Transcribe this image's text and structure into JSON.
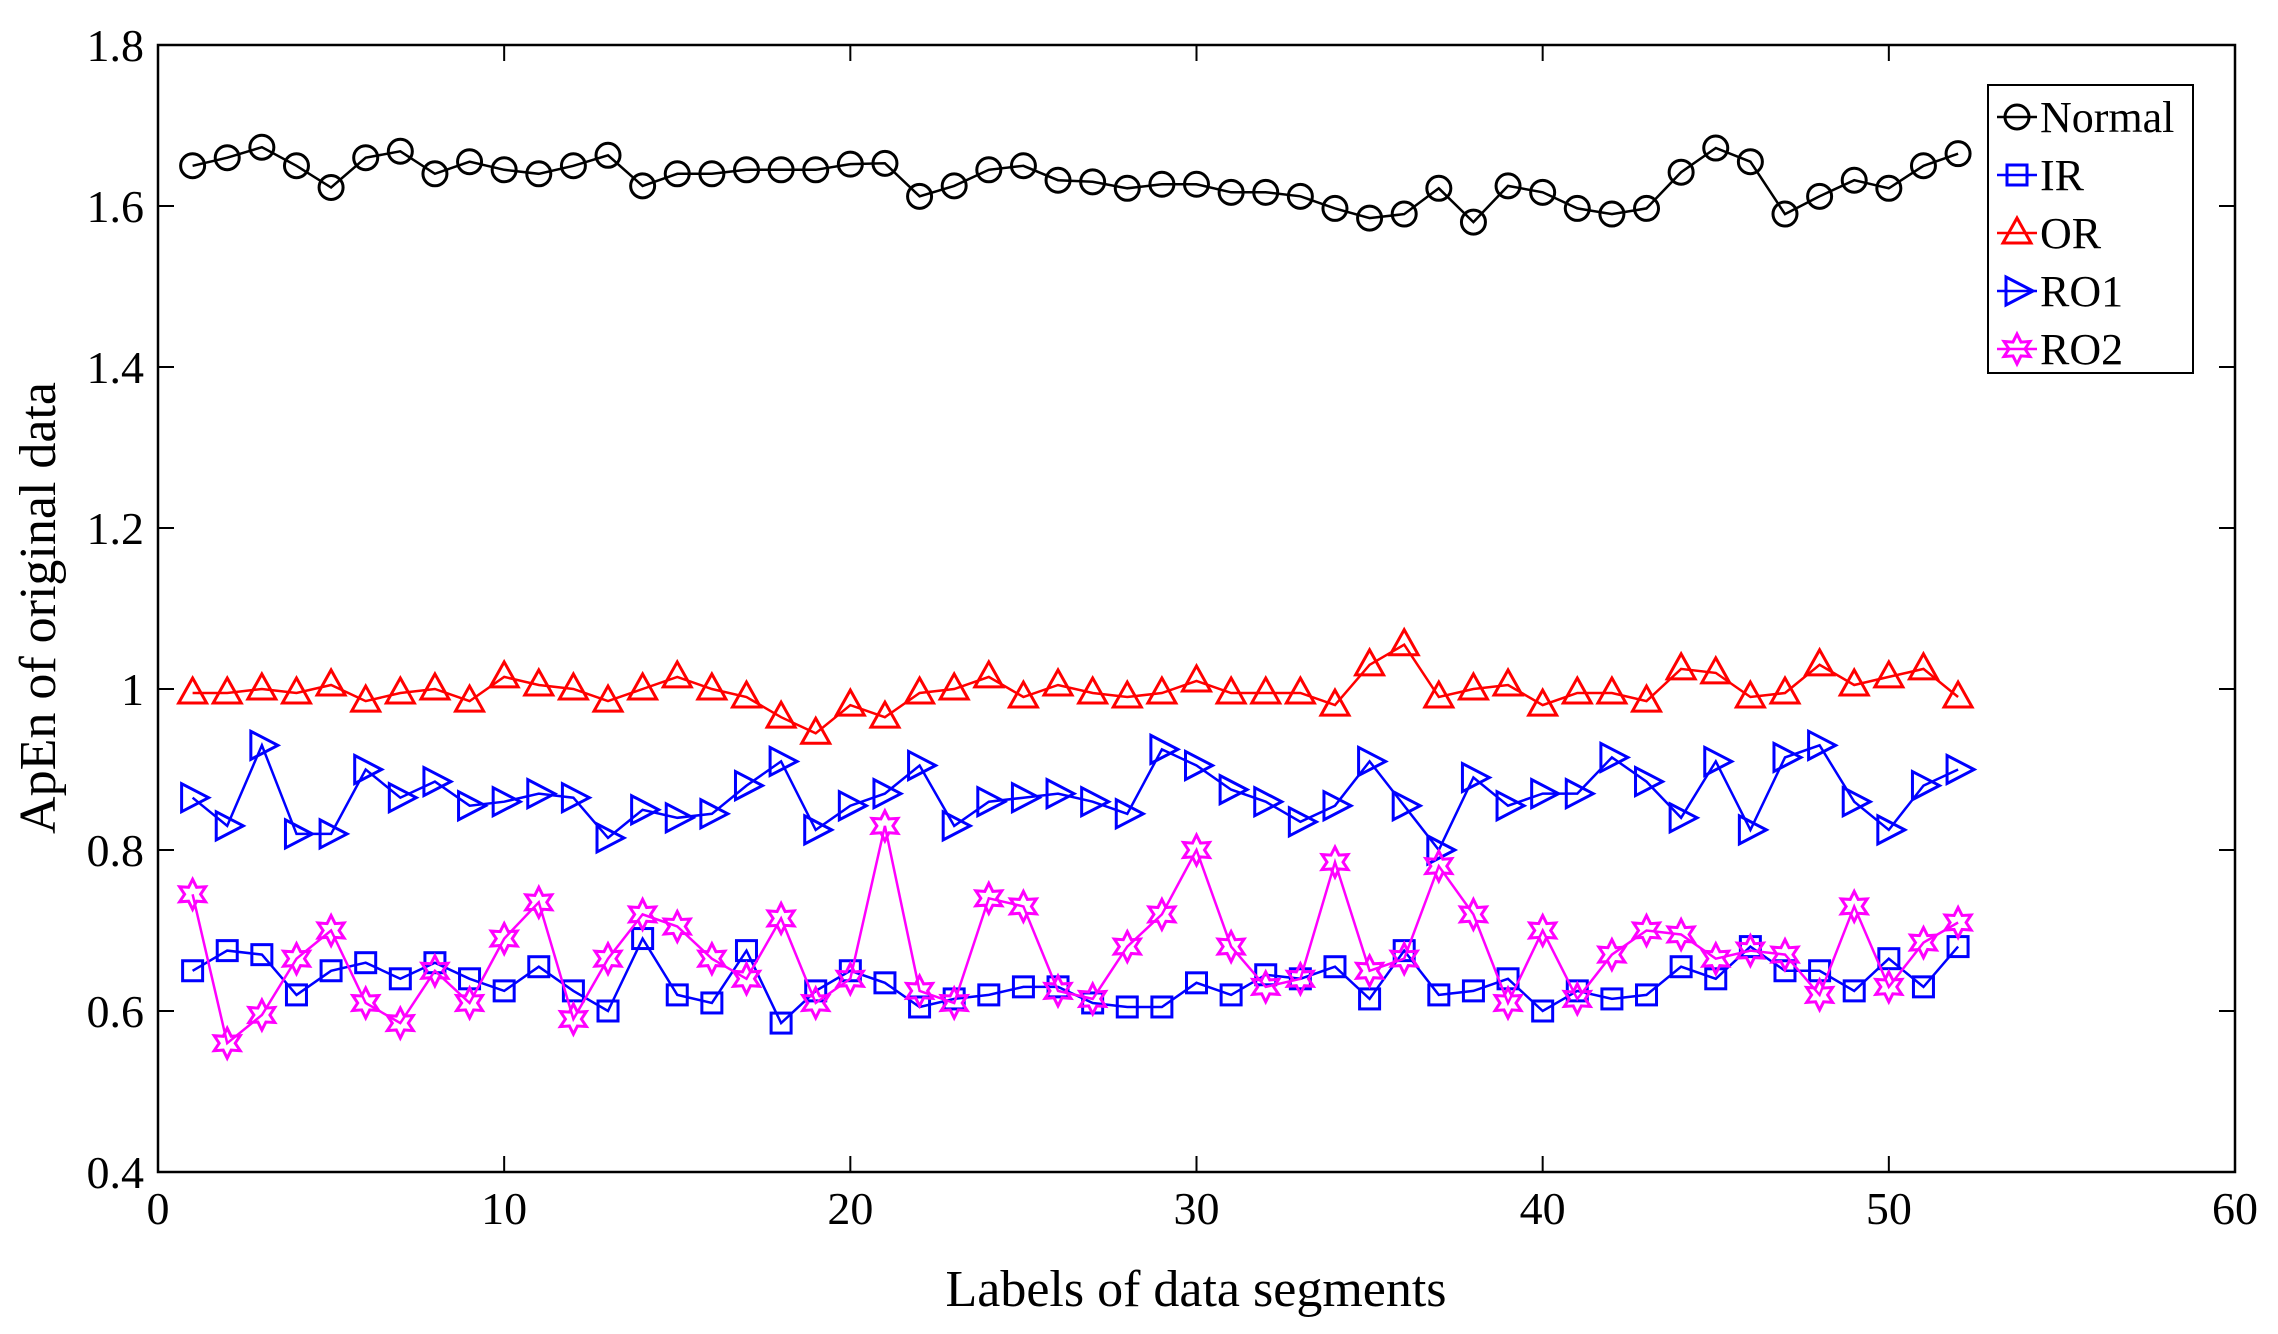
{
  "chart_data": {
    "type": "line",
    "xlabel": "Labels of data segments",
    "ylabel": "ApEn of original data",
    "xlim": [
      0,
      60
    ],
    "ylim": [
      0.4,
      1.8
    ],
    "xticks": [
      0,
      10,
      20,
      30,
      40,
      50,
      60
    ],
    "yticks": [
      0.4,
      0.6,
      0.8,
      1,
      1.2,
      1.4,
      1.6,
      1.8
    ],
    "xtick_labels": [
      "0",
      "10",
      "20",
      "30",
      "40",
      "50",
      "60"
    ],
    "ytick_labels": [
      "0.4",
      "0.6",
      "0.8",
      "1",
      "1.2",
      "1.4",
      "1.6",
      "1.8"
    ],
    "grid": false,
    "legend_position": "top-right",
    "x": [
      1,
      2,
      3,
      4,
      5,
      6,
      7,
      8,
      9,
      10,
      11,
      12,
      13,
      14,
      15,
      16,
      17,
      18,
      19,
      20,
      21,
      22,
      23,
      24,
      25,
      26,
      27,
      28,
      29,
      30,
      31,
      32,
      33,
      34,
      35,
      36,
      37,
      38,
      39,
      40,
      41,
      42,
      43,
      44,
      45,
      46,
      47,
      48,
      49,
      50,
      51,
      52
    ],
    "series": [
      {
        "name": "Normal",
        "color": "#000000",
        "marker": "circle",
        "values": [
          1.65,
          1.66,
          1.673,
          1.65,
          1.623,
          1.66,
          1.668,
          1.64,
          1.655,
          1.645,
          1.64,
          1.65,
          1.663,
          1.625,
          1.64,
          1.64,
          1.645,
          1.645,
          1.645,
          1.652,
          1.653,
          1.612,
          1.625,
          1.645,
          1.65,
          1.632,
          1.63,
          1.622,
          1.627,
          1.627,
          1.617,
          1.617,
          1.612,
          1.597,
          1.585,
          1.59,
          1.622,
          1.58,
          1.625,
          1.617,
          1.597,
          1.59,
          1.597,
          1.642,
          1.672,
          1.655,
          1.59,
          1.612,
          1.632,
          1.622,
          1.65,
          1.665
        ]
      },
      {
        "name": "IR",
        "color": "#0000ff",
        "marker": "square",
        "values": [
          0.65,
          0.675,
          0.67,
          0.62,
          0.65,
          0.66,
          0.64,
          0.66,
          0.64,
          0.625,
          0.655,
          0.625,
          0.6,
          0.69,
          0.62,
          0.61,
          0.675,
          0.585,
          0.625,
          0.65,
          0.635,
          0.605,
          0.615,
          0.62,
          0.63,
          0.63,
          0.61,
          0.605,
          0.605,
          0.635,
          0.62,
          0.645,
          0.64,
          0.655,
          0.615,
          0.675,
          0.62,
          0.625,
          0.64,
          0.6,
          0.625,
          0.615,
          0.62,
          0.655,
          0.64,
          0.68,
          0.65,
          0.65,
          0.625,
          0.665,
          0.63,
          0.68
        ]
      },
      {
        "name": "OR",
        "color": "#ff0000",
        "marker": "triangle-up",
        "values": [
          0.995,
          0.995,
          1.0,
          0.995,
          1.005,
          0.985,
          0.995,
          1.0,
          0.985,
          1.015,
          1.005,
          1.0,
          0.985,
          1.0,
          1.015,
          1.0,
          0.99,
          0.965,
          0.945,
          0.98,
          0.965,
          0.995,
          1.0,
          1.015,
          0.99,
          1.005,
          0.995,
          0.99,
          0.995,
          1.01,
          0.995,
          0.995,
          0.995,
          0.98,
          1.03,
          1.055,
          0.99,
          1.0,
          1.005,
          0.98,
          0.995,
          0.995,
          0.985,
          1.025,
          1.02,
          0.99,
          0.995,
          1.03,
          1.005,
          1.015,
          1.025,
          0.99
        ]
      },
      {
        "name": "RO1",
        "color": "#0000ff",
        "marker": "triangle-right",
        "values": [
          0.865,
          0.83,
          0.93,
          0.82,
          0.82,
          0.9,
          0.865,
          0.885,
          0.855,
          0.86,
          0.87,
          0.865,
          0.815,
          0.85,
          0.84,
          0.845,
          0.88,
          0.91,
          0.825,
          0.855,
          0.87,
          0.905,
          0.83,
          0.86,
          0.865,
          0.87,
          0.86,
          0.845,
          0.925,
          0.905,
          0.875,
          0.86,
          0.835,
          0.855,
          0.91,
          0.855,
          0.8,
          0.89,
          0.855,
          0.87,
          0.87,
          0.915,
          0.885,
          0.84,
          0.91,
          0.825,
          0.915,
          0.93,
          0.86,
          0.825,
          0.88,
          0.9
        ]
      },
      {
        "name": "RO2",
        "color": "#ff00ff",
        "marker": "hexagram",
        "values": [
          0.745,
          0.56,
          0.595,
          0.665,
          0.7,
          0.61,
          0.585,
          0.65,
          0.61,
          0.69,
          0.735,
          0.59,
          0.665,
          0.72,
          0.705,
          0.665,
          0.64,
          0.715,
          0.61,
          0.64,
          0.83,
          0.625,
          0.61,
          0.74,
          0.73,
          0.625,
          0.615,
          0.68,
          0.72,
          0.8,
          0.68,
          0.63,
          0.64,
          0.785,
          0.65,
          0.665,
          0.78,
          0.72,
          0.61,
          0.7,
          0.615,
          0.67,
          0.7,
          0.695,
          0.665,
          0.675,
          0.67,
          0.62,
          0.73,
          0.63,
          0.685,
          0.71
        ]
      }
    ]
  }
}
